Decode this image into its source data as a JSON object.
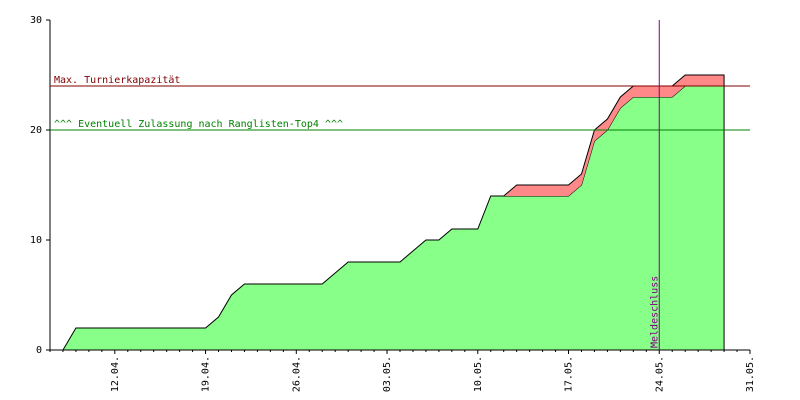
{
  "chart_data": {
    "type": "stacked-area",
    "categories": [
      null,
      null,
      null,
      null,
      null,
      "12.04.",
      null,
      null,
      null,
      null,
      null,
      null,
      "19.04.",
      null,
      null,
      null,
      null,
      null,
      null,
      "26.04.",
      null,
      null,
      null,
      null,
      null,
      null,
      "03.05.",
      null,
      null,
      null,
      null,
      null,
      null,
      "10.05.",
      null,
      null,
      null,
      null,
      null,
      null,
      "17.05.",
      null,
      null,
      null,
      null,
      null,
      null,
      "24.05.",
      null,
      null,
      null,
      null,
      null,
      null,
      "31.05."
    ],
    "series": [
      {
        "color": "#88ff88",
        "values": [
          null,
          0,
          2,
          2,
          2,
          2,
          2,
          2,
          2,
          2,
          2,
          2,
          2,
          3,
          5,
          6,
          6,
          6,
          6,
          6,
          6,
          6,
          7,
          8,
          8,
          8,
          8,
          8,
          9,
          10,
          10,
          11,
          11,
          11,
          14,
          14,
          14,
          14,
          14,
          14,
          14,
          15,
          19,
          20,
          22,
          23,
          23,
          23,
          23,
          24,
          24,
          24,
          24,
          null,
          null
        ]
      },
      {
        "color": "#ff8888",
        "values": [
          null,
          null,
          null,
          null,
          null,
          null,
          null,
          null,
          null,
          null,
          null,
          null,
          null,
          null,
          null,
          null,
          null,
          null,
          null,
          null,
          null,
          null,
          null,
          null,
          null,
          null,
          null,
          null,
          null,
          null,
          null,
          null,
          null,
          null,
          null,
          0,
          1,
          1,
          1,
          1,
          1,
          1,
          1,
          1,
          1,
          1,
          1,
          1,
          1,
          1,
          1,
          1,
          1,
          null,
          null
        ]
      }
    ],
    "ylim": [
      0,
      30
    ],
    "yticks": [
      0,
      10,
      20,
      30
    ],
    "hlines": [
      {
        "label": "Max. Turnierkapazität",
        "value": 24,
        "color": "#800000"
      },
      {
        "label": "^^^ Eventuell Zulassung nach Ranglisten-Top4 ^^^",
        "value": 20,
        "color": "#008000"
      }
    ],
    "vlines": [
      {
        "label": "Meldeschluss",
        "at": "24.05.",
        "color": "#800080"
      }
    ]
  }
}
